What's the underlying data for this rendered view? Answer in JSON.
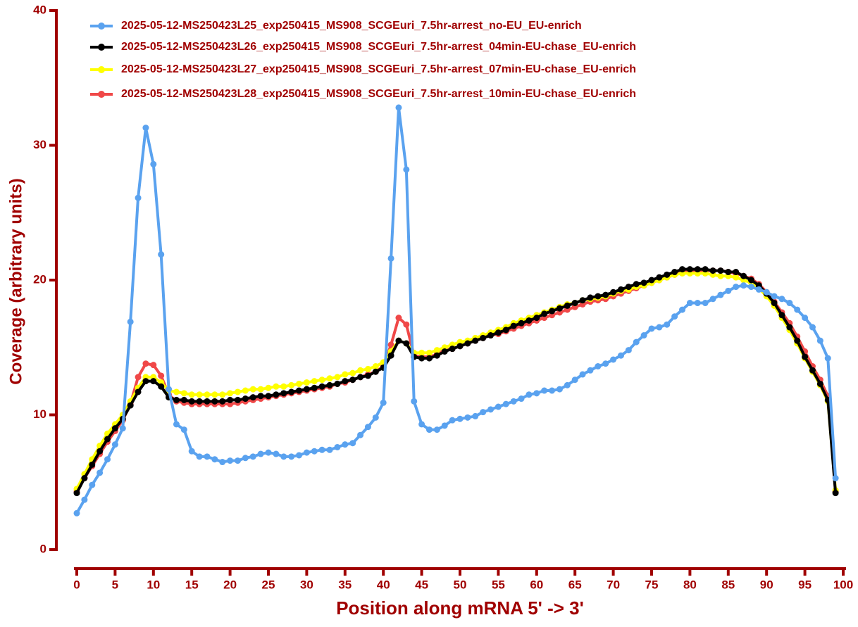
{
  "chart_data": {
    "type": "line",
    "ylabel": "Coverage (arbitrary units)",
    "xlabel": "Position along mRNA 5' -> 3'",
    "x": [
      0,
      1,
      2,
      3,
      4,
      5,
      6,
      7,
      8,
      9,
      10,
      11,
      12,
      13,
      14,
      15,
      16,
      17,
      18,
      19,
      20,
      21,
      22,
      23,
      24,
      25,
      26,
      27,
      28,
      29,
      30,
      31,
      32,
      33,
      34,
      35,
      36,
      37,
      38,
      39,
      40,
      41,
      42,
      43,
      44,
      45,
      46,
      47,
      48,
      49,
      50,
      51,
      52,
      53,
      54,
      55,
      56,
      57,
      58,
      59,
      60,
      61,
      62,
      63,
      64,
      65,
      66,
      67,
      68,
      69,
      70,
      71,
      72,
      73,
      74,
      75,
      76,
      77,
      78,
      79,
      80,
      81,
      82,
      83,
      84,
      85,
      86,
      87,
      88,
      89,
      90,
      91,
      92,
      93,
      94,
      95,
      96,
      97,
      98,
      99
    ],
    "series": [
      {
        "name": "2025-05-12-MS250423L25_exp250415_MS908_SCGEuri_7.5hr-arrest_no-EU_EU-enrich",
        "color": "#5aa2ef",
        "values": [
          2.7,
          3.7,
          4.8,
          5.7,
          6.7,
          7.8,
          9.0,
          16.9,
          26.1,
          31.3,
          28.6,
          21.9,
          11.9,
          9.3,
          8.9,
          7.3,
          6.9,
          6.9,
          6.7,
          6.5,
          6.6,
          6.6,
          6.8,
          6.9,
          7.1,
          7.2,
          7.1,
          6.9,
          6.9,
          7.0,
          7.2,
          7.3,
          7.4,
          7.4,
          7.6,
          7.8,
          7.9,
          8.5,
          9.1,
          9.8,
          10.9,
          21.6,
          32.8,
          28.2,
          11.0,
          9.3,
          8.9,
          8.9,
          9.2,
          9.6,
          9.7,
          9.8,
          9.9,
          10.2,
          10.4,
          10.6,
          10.8,
          11.0,
          11.2,
          11.5,
          11.6,
          11.8,
          11.8,
          11.9,
          12.2,
          12.6,
          13.0,
          13.3,
          13.6,
          13.8,
          14.1,
          14.4,
          14.8,
          15.4,
          15.9,
          16.4,
          16.5,
          16.7,
          17.3,
          17.8,
          18.3,
          18.3,
          18.3,
          18.6,
          18.9,
          19.2,
          19.5,
          19.6,
          19.5,
          19.3,
          19.1,
          18.8,
          18.6,
          18.3,
          17.8,
          17.2,
          16.5,
          15.5,
          14.2,
          5.3
        ]
      },
      {
        "name": "2025-05-12-MS250423L26_exp250415_MS908_SCGEuri_7.5hr-arrest_04min-EU-chase_EU-enrich",
        "color": "#000000",
        "values": [
          4.2,
          5.3,
          6.3,
          7.3,
          8.2,
          9.0,
          9.7,
          10.7,
          11.7,
          12.5,
          12.5,
          12.1,
          11.3,
          11.1,
          11.1,
          11.0,
          11.0,
          11.0,
          11.0,
          11.0,
          11.1,
          11.1,
          11.2,
          11.3,
          11.4,
          11.4,
          11.5,
          11.6,
          11.7,
          11.8,
          11.9,
          12.0,
          12.1,
          12.2,
          12.3,
          12.5,
          12.6,
          12.8,
          12.9,
          13.2,
          13.5,
          14.4,
          15.5,
          15.3,
          14.3,
          14.2,
          14.2,
          14.4,
          14.7,
          14.9,
          15.1,
          15.3,
          15.5,
          15.7,
          15.9,
          16.1,
          16.3,
          16.6,
          16.8,
          17.0,
          17.2,
          17.5,
          17.7,
          17.9,
          18.1,
          18.3,
          18.5,
          18.7,
          18.8,
          18.9,
          19.1,
          19.3,
          19.5,
          19.7,
          19.8,
          20.0,
          20.2,
          20.4,
          20.6,
          20.8,
          20.8,
          20.8,
          20.8,
          20.7,
          20.7,
          20.6,
          20.6,
          20.3,
          20.0,
          19.6,
          19.0,
          18.3,
          17.4,
          16.5,
          15.5,
          14.3,
          13.3,
          12.3,
          11.1,
          4.2
        ]
      },
      {
        "name": "2025-05-12-MS250423L27_exp250415_MS908_SCGEuri_7.5hr-arrest_07min-EU-chase_EU-enrich",
        "color": "#ffff00",
        "values": [
          4.5,
          5.6,
          6.7,
          7.7,
          8.6,
          9.3,
          10.0,
          11.0,
          12.0,
          12.8,
          12.8,
          12.4,
          11.8,
          11.7,
          11.6,
          11.5,
          11.5,
          11.5,
          11.5,
          11.5,
          11.6,
          11.7,
          11.8,
          11.9,
          11.9,
          12.0,
          12.1,
          12.1,
          12.2,
          12.3,
          12.4,
          12.5,
          12.6,
          12.7,
          12.8,
          13.0,
          13.1,
          13.3,
          13.4,
          13.6,
          13.9,
          14.7,
          15.5,
          15.3,
          14.6,
          14.6,
          14.6,
          14.8,
          15.0,
          15.2,
          15.4,
          15.5,
          15.7,
          15.9,
          16.1,
          16.3,
          16.5,
          16.8,
          17.0,
          17.2,
          17.4,
          17.6,
          17.8,
          18.0,
          18.2,
          18.3,
          18.5,
          18.6,
          18.7,
          18.8,
          19.0,
          19.2,
          19.3,
          19.5,
          19.6,
          19.8,
          20.0,
          20.2,
          20.4,
          20.5,
          20.5,
          20.5,
          20.5,
          20.4,
          20.3,
          20.3,
          20.2,
          20.0,
          19.8,
          19.4,
          18.8,
          18.1,
          17.2,
          16.3,
          15.3,
          14.2,
          13.2,
          12.2,
          11.0,
          4.4
        ]
      },
      {
        "name": "2025-05-12-MS250423L28_exp250415_MS908_SCGEuri_7.5hr-arrest_10min-EU-chase_EU-enrich",
        "color": "#f04848",
        "values": [
          4.3,
          5.3,
          6.2,
          7.1,
          8.0,
          8.8,
          9.6,
          10.8,
          12.8,
          13.8,
          13.7,
          12.9,
          11.5,
          11.0,
          10.9,
          10.8,
          10.8,
          10.8,
          10.8,
          10.8,
          10.8,
          10.9,
          11.0,
          11.1,
          11.2,
          11.3,
          11.4,
          11.5,
          11.6,
          11.7,
          11.8,
          11.9,
          12.0,
          12.1,
          12.3,
          12.4,
          12.6,
          12.8,
          13.0,
          13.2,
          13.6,
          15.2,
          17.2,
          16.7,
          14.4,
          14.3,
          14.3,
          14.5,
          14.8,
          14.9,
          15.1,
          15.3,
          15.5,
          15.7,
          15.9,
          16.0,
          16.2,
          16.4,
          16.6,
          16.8,
          17.0,
          17.2,
          17.4,
          17.6,
          17.8,
          18.0,
          18.2,
          18.4,
          18.5,
          18.6,
          18.8,
          19.0,
          19.2,
          19.4,
          19.6,
          19.8,
          20.0,
          20.2,
          20.4,
          20.6,
          20.7,
          20.7,
          20.7,
          20.7,
          20.7,
          20.6,
          20.5,
          20.3,
          20.1,
          19.7,
          19.1,
          18.4,
          17.6,
          16.8,
          15.8,
          14.7,
          13.6,
          12.6,
          11.4,
          4.3
        ]
      }
    ],
    "xlim": [
      0,
      100
    ],
    "xticks": [
      0,
      5,
      10,
      15,
      20,
      25,
      30,
      35,
      40,
      45,
      50,
      55,
      60,
      65,
      70,
      75,
      80,
      85,
      90,
      95,
      100
    ],
    "ylim": [
      0,
      40
    ],
    "yticks": [
      0,
      10,
      20,
      30,
      40
    ],
    "axis_color": "#a00000"
  }
}
